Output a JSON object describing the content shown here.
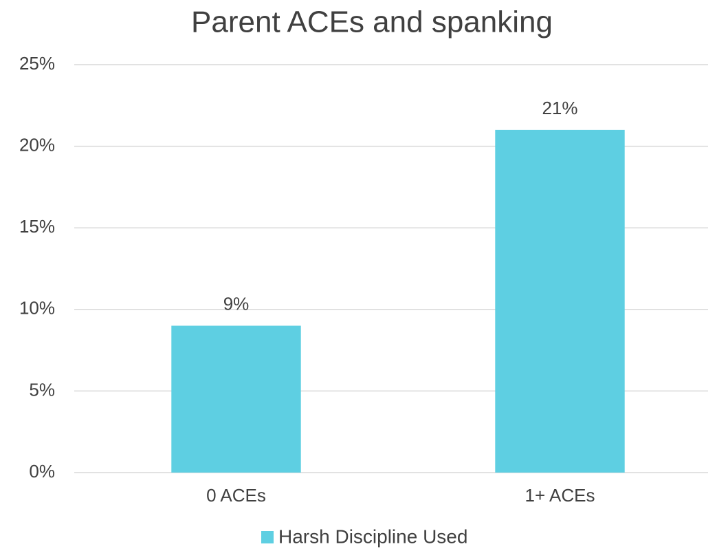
{
  "chart_data": {
    "type": "bar",
    "title": "Parent ACEs and spanking",
    "categories": [
      "0 ACEs",
      "1+ ACEs"
    ],
    "series": [
      {
        "name": "Harsh Discipline Used",
        "color": "#5ecfe2",
        "values": [
          9,
          21
        ],
        "value_labels": [
          "9%",
          "21%"
        ]
      }
    ],
    "ylim": [
      0,
      25
    ],
    "yticks": [
      {
        "value": 0,
        "label": "0%"
      },
      {
        "value": 5,
        "label": "5%"
      },
      {
        "value": 10,
        "label": "10%"
      },
      {
        "value": 15,
        "label": "15%"
      },
      {
        "value": 20,
        "label": "20%"
      },
      {
        "value": 25,
        "label": "25%"
      }
    ],
    "grid": true,
    "legend": "bottom"
  }
}
